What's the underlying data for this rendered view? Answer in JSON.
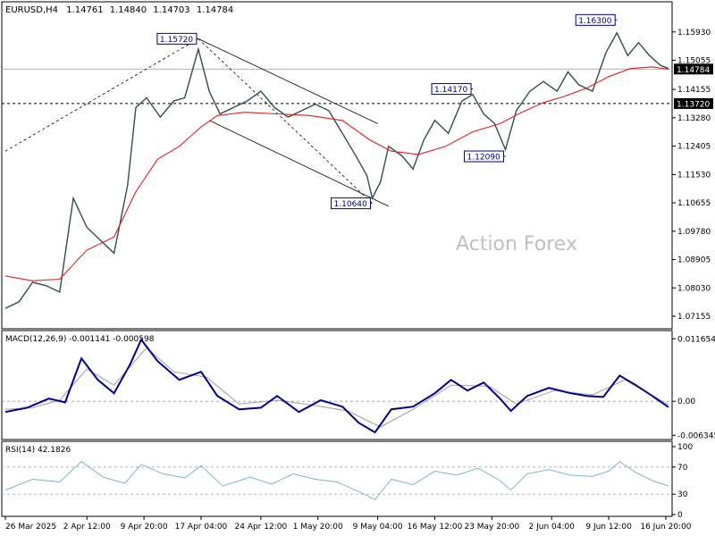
{
  "chart_data": {
    "type": "line",
    "symbol": "EURUSD,H4",
    "ohlc_header": {
      "open": "1.14761",
      "high": "1.14840",
      "low": "1.14703",
      "close": "1.14784"
    },
    "watermark": "Action Forex",
    "price_panel": {
      "ylim": [
        1.0688,
        1.1664
      ],
      "y_ticks": [
        "1.15930",
        "1.15055",
        "1.14155",
        "1.13280",
        "1.12405",
        "1.11530",
        "1.10655",
        "1.09780",
        "1.08905",
        "1.08030",
        "1.07155"
      ],
      "current_price": "1.14784",
      "support_level": "1.13720",
      "annotations": [
        {
          "label": "1.15720",
          "value": 1.1572,
          "bar": 71
        },
        {
          "label": "1.10640",
          "value": 1.1064,
          "bar": 135
        },
        {
          "label": "1.14170",
          "value": 1.1417,
          "bar": 172
        },
        {
          "label": "1.12090",
          "value": 1.1209,
          "bar": 184
        },
        {
          "label": "1.16300",
          "value": 1.163,
          "bar": 225
        }
      ],
      "close_series": [
        {
          "bar": 0,
          "value": 1.074
        },
        {
          "bar": 5,
          "value": 1.076
        },
        {
          "bar": 10,
          "value": 1.082
        },
        {
          "bar": 15,
          "value": 1.081
        },
        {
          "bar": 20,
          "value": 1.079
        },
        {
          "bar": 25,
          "value": 1.108
        },
        {
          "bar": 30,
          "value": 1.099
        },
        {
          "bar": 35,
          "value": 1.095
        },
        {
          "bar": 40,
          "value": 1.091
        },
        {
          "bar": 45,
          "value": 1.112
        },
        {
          "bar": 48,
          "value": 1.136
        },
        {
          "bar": 52,
          "value": 1.139
        },
        {
          "bar": 57,
          "value": 1.133
        },
        {
          "bar": 62,
          "value": 1.138
        },
        {
          "bar": 66,
          "value": 1.139
        },
        {
          "bar": 71,
          "value": 1.154
        },
        {
          "bar": 75,
          "value": 1.141
        },
        {
          "bar": 79,
          "value": 1.134
        },
        {
          "bar": 84,
          "value": 1.136
        },
        {
          "bar": 89,
          "value": 1.138
        },
        {
          "bar": 94,
          "value": 1.141
        },
        {
          "bar": 99,
          "value": 1.136
        },
        {
          "bar": 104,
          "value": 1.133
        },
        {
          "bar": 109,
          "value": 1.135
        },
        {
          "bar": 114,
          "value": 1.137
        },
        {
          "bar": 119,
          "value": 1.135
        },
        {
          "bar": 124,
          "value": 1.128
        },
        {
          "bar": 129,
          "value": 1.121
        },
        {
          "bar": 133,
          "value": 1.115
        },
        {
          "bar": 135,
          "value": 1.108
        },
        {
          "bar": 138,
          "value": 1.113
        },
        {
          "bar": 141,
          "value": 1.124
        },
        {
          "bar": 146,
          "value": 1.121
        },
        {
          "bar": 150,
          "value": 1.117
        },
        {
          "bar": 154,
          "value": 1.126
        },
        {
          "bar": 158,
          "value": 1.132
        },
        {
          "bar": 163,
          "value": 1.128
        },
        {
          "bar": 168,
          "value": 1.138
        },
        {
          "bar": 172,
          "value": 1.14
        },
        {
          "bar": 176,
          "value": 1.134
        },
        {
          "bar": 180,
          "value": 1.131
        },
        {
          "bar": 184,
          "value": 1.123
        },
        {
          "bar": 188,
          "value": 1.135
        },
        {
          "bar": 193,
          "value": 1.141
        },
        {
          "bar": 198,
          "value": 1.144
        },
        {
          "bar": 203,
          "value": 1.141
        },
        {
          "bar": 207,
          "value": 1.147
        },
        {
          "bar": 211,
          "value": 1.143
        },
        {
          "bar": 216,
          "value": 1.141
        },
        {
          "bar": 221,
          "value": 1.153
        },
        {
          "bar": 225,
          "value": 1.159
        },
        {
          "bar": 229,
          "value": 1.152
        },
        {
          "bar": 233,
          "value": 1.156
        },
        {
          "bar": 237,
          "value": 1.152
        },
        {
          "bar": 241,
          "value": 1.149
        },
        {
          "bar": 244,
          "value": 1.148
        }
      ],
      "ma_series": [
        {
          "bar": 0,
          "value": 1.084
        },
        {
          "bar": 10,
          "value": 1.0825
        },
        {
          "bar": 20,
          "value": 1.083
        },
        {
          "bar": 30,
          "value": 1.092
        },
        {
          "bar": 40,
          "value": 1.096
        },
        {
          "bar": 48,
          "value": 1.11
        },
        {
          "bar": 56,
          "value": 1.12
        },
        {
          "bar": 64,
          "value": 1.124
        },
        {
          "bar": 72,
          "value": 1.13
        },
        {
          "bar": 78,
          "value": 1.1335
        },
        {
          "bar": 88,
          "value": 1.1345
        },
        {
          "bar": 100,
          "value": 1.134
        },
        {
          "bar": 112,
          "value": 1.1335
        },
        {
          "bar": 124,
          "value": 1.132
        },
        {
          "bar": 134,
          "value": 1.126
        },
        {
          "bar": 142,
          "value": 1.1225
        },
        {
          "bar": 152,
          "value": 1.1215
        },
        {
          "bar": 162,
          "value": 1.124
        },
        {
          "bar": 172,
          "value": 1.1285
        },
        {
          "bar": 182,
          "value": 1.131
        },
        {
          "bar": 190,
          "value": 1.1345
        },
        {
          "bar": 198,
          "value": 1.1375
        },
        {
          "bar": 206,
          "value": 1.1395
        },
        {
          "bar": 214,
          "value": 1.142
        },
        {
          "bar": 222,
          "value": 1.1455
        },
        {
          "bar": 230,
          "value": 1.148
        },
        {
          "bar": 238,
          "value": 1.1485
        },
        {
          "bar": 244,
          "value": 1.1478
        }
      ],
      "trendlines": [
        {
          "from": {
            "bar": 0,
            "value": 1.1225
          },
          "to": {
            "bar": 71,
            "value": 1.1572
          },
          "style": "dashed"
        },
        {
          "from": {
            "bar": 71,
            "value": 1.1572
          },
          "to": {
            "bar": 135,
            "value": 1.1064
          },
          "style": "dashed"
        },
        {
          "from": {
            "bar": 71,
            "value": 1.1572
          },
          "to": {
            "bar": 137,
            "value": 1.131
          },
          "style": "solid"
        },
        {
          "from": {
            "bar": 75,
            "value": 1.132
          },
          "to": {
            "bar": 141,
            "value": 1.1055
          },
          "style": "solid"
        }
      ]
    },
    "macd_panel": {
      "label": "MACD(12,26,9) -0.001141 -0.000598",
      "ylim": [
        -0.0068,
        0.0122
      ],
      "y_ticks": [
        "0.011654",
        "0.00",
        "-0.006345"
      ],
      "macd_series": [
        {
          "bar": 0,
          "value": -0.002
        },
        {
          "bar": 8,
          "value": -0.0012
        },
        {
          "bar": 16,
          "value": 0.0005
        },
        {
          "bar": 22,
          "value": -0.0002
        },
        {
          "bar": 28,
          "value": 0.008
        },
        {
          "bar": 34,
          "value": 0.004
        },
        {
          "bar": 40,
          "value": 0.0015
        },
        {
          "bar": 46,
          "value": 0.007
        },
        {
          "bar": 50,
          "value": 0.0115
        },
        {
          "bar": 56,
          "value": 0.0075
        },
        {
          "bar": 64,
          "value": 0.004
        },
        {
          "bar": 72,
          "value": 0.0055
        },
        {
          "bar": 78,
          "value": 0.001
        },
        {
          "bar": 86,
          "value": -0.0015
        },
        {
          "bar": 94,
          "value": -0.0012
        },
        {
          "bar": 100,
          "value": 0.001
        },
        {
          "bar": 108,
          "value": -0.002
        },
        {
          "bar": 116,
          "value": 0.0002
        },
        {
          "bar": 124,
          "value": -0.001
        },
        {
          "bar": 130,
          "value": -0.004
        },
        {
          "bar": 136,
          "value": -0.0058
        },
        {
          "bar": 142,
          "value": -0.0015
        },
        {
          "bar": 150,
          "value": -0.001
        },
        {
          "bar": 158,
          "value": 0.0015
        },
        {
          "bar": 164,
          "value": 0.004
        },
        {
          "bar": 170,
          "value": 0.002
        },
        {
          "bar": 176,
          "value": 0.0035
        },
        {
          "bar": 182,
          "value": 0.0005
        },
        {
          "bar": 186,
          "value": -0.0018
        },
        {
          "bar": 192,
          "value": 0.001
        },
        {
          "bar": 200,
          "value": 0.0025
        },
        {
          "bar": 208,
          "value": 0.0015
        },
        {
          "bar": 214,
          "value": 0.001
        },
        {
          "bar": 220,
          "value": 0.0008
        },
        {
          "bar": 226,
          "value": 0.0048
        },
        {
          "bar": 232,
          "value": 0.003
        },
        {
          "bar": 238,
          "value": 0.001
        },
        {
          "bar": 244,
          "value": -0.0011
        }
      ],
      "signal_series": [
        {
          "bar": 0,
          "value": -0.0015
        },
        {
          "bar": 10,
          "value": -0.0012
        },
        {
          "bar": 20,
          "value": 0.0002
        },
        {
          "bar": 30,
          "value": 0.006
        },
        {
          "bar": 40,
          "value": 0.003
        },
        {
          "bar": 52,
          "value": 0.01
        },
        {
          "bar": 62,
          "value": 0.0055
        },
        {
          "bar": 74,
          "value": 0.0045
        },
        {
          "bar": 86,
          "value": -0.0005
        },
        {
          "bar": 100,
          "value": 0.0002
        },
        {
          "bar": 114,
          "value": -0.0008
        },
        {
          "bar": 126,
          "value": -0.0018
        },
        {
          "bar": 138,
          "value": -0.0048
        },
        {
          "bar": 150,
          "value": -0.0015
        },
        {
          "bar": 164,
          "value": 0.003
        },
        {
          "bar": 178,
          "value": 0.0028
        },
        {
          "bar": 188,
          "value": -0.0005
        },
        {
          "bar": 202,
          "value": 0.002
        },
        {
          "bar": 216,
          "value": 0.0012
        },
        {
          "bar": 228,
          "value": 0.004
        },
        {
          "bar": 240,
          "value": 0.0005
        },
        {
          "bar": 244,
          "value": -0.0006
        }
      ]
    },
    "rsi_panel": {
      "label": "RSI(14) 42.1826",
      "ylim": [
        0,
        100
      ],
      "y_ticks": [
        100,
        70,
        30,
        0
      ],
      "levels": [
        70,
        30
      ],
      "rsi_series": [
        {
          "bar": 0,
          "value": 36
        },
        {
          "bar": 10,
          "value": 52
        },
        {
          "bar": 20,
          "value": 48
        },
        {
          "bar": 28,
          "value": 78
        },
        {
          "bar": 36,
          "value": 55
        },
        {
          "bar": 44,
          "value": 46
        },
        {
          "bar": 50,
          "value": 74
        },
        {
          "bar": 58,
          "value": 60
        },
        {
          "bar": 66,
          "value": 54
        },
        {
          "bar": 72,
          "value": 72
        },
        {
          "bar": 80,
          "value": 42
        },
        {
          "bar": 90,
          "value": 55
        },
        {
          "bar": 98,
          "value": 45
        },
        {
          "bar": 106,
          "value": 60
        },
        {
          "bar": 114,
          "value": 52
        },
        {
          "bar": 122,
          "value": 48
        },
        {
          "bar": 130,
          "value": 34
        },
        {
          "bar": 136,
          "value": 22
        },
        {
          "bar": 142,
          "value": 52
        },
        {
          "bar": 150,
          "value": 44
        },
        {
          "bar": 158,
          "value": 64
        },
        {
          "bar": 166,
          "value": 58
        },
        {
          "bar": 174,
          "value": 68
        },
        {
          "bar": 182,
          "value": 50
        },
        {
          "bar": 186,
          "value": 36
        },
        {
          "bar": 192,
          "value": 60
        },
        {
          "bar": 200,
          "value": 66
        },
        {
          "bar": 208,
          "value": 58
        },
        {
          "bar": 216,
          "value": 56
        },
        {
          "bar": 222,
          "value": 64
        },
        {
          "bar": 226,
          "value": 78
        },
        {
          "bar": 232,
          "value": 62
        },
        {
          "bar": 238,
          "value": 50
        },
        {
          "bar": 244,
          "value": 42
        }
      ]
    },
    "x_axis": {
      "bars": 245,
      "tick_labels": [
        {
          "label": "26 Mar 2025",
          "bar": 0
        },
        {
          "label": "2 Apr 12:00",
          "bar": 30
        },
        {
          "label": "9 Apr 20:00",
          "bar": 51
        },
        {
          "label": "17 Apr 04:00",
          "bar": 72
        },
        {
          "label": "24 Apr 12:00",
          "bar": 94
        },
        {
          "label": "1 May 20:00",
          "bar": 115
        },
        {
          "label": "9 May 04:00",
          "bar": 137
        },
        {
          "label": "16 May 12:00",
          "bar": 158
        },
        {
          "label": "23 May 20:00",
          "bar": 179
        },
        {
          "label": "2 Jun 04:00",
          "bar": 201
        },
        {
          "label": "9 Jun 12:00",
          "bar": 222
        },
        {
          "label": "16 Jun 20:00",
          "bar": 243
        }
      ]
    },
    "colors": {
      "price": "#2f4f4f",
      "ma": "#e02020",
      "macd": "#00008b",
      "signal": "#a0a0a0",
      "rsi": "#7ab8cf",
      "label_box": "#00008b",
      "current_box": "#000000",
      "grid": "#c8c8c8"
    }
  }
}
